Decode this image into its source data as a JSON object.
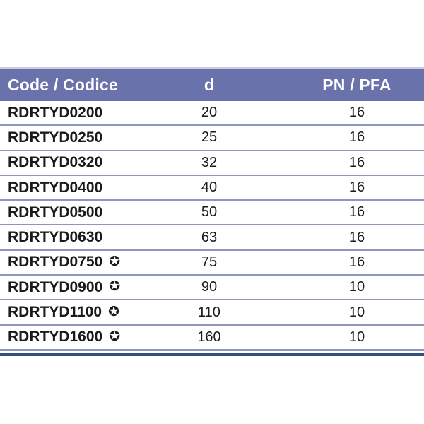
{
  "page": {
    "background": "#ffffff"
  },
  "colors": {
    "header_bg": "#6a72ab",
    "header_text": "#ffffff",
    "header_top_border": "#c9cde4",
    "row_text": "#1a1a1a",
    "separator": "#8f95bb",
    "bottom_rule": "#33517f"
  },
  "icons": {
    "certified_star": "✪"
  },
  "table": {
    "columns": [
      {
        "id": "code",
        "label": "Code / Codice"
      },
      {
        "id": "d",
        "label": "d"
      },
      {
        "id": "pn",
        "label": "PN / PFA"
      }
    ],
    "rows": [
      {
        "code": "RDRTYD0200",
        "star": false,
        "d": "20",
        "pn": "16"
      },
      {
        "code": "RDRTYD0250",
        "star": false,
        "d": "25",
        "pn": "16"
      },
      {
        "code": "RDRTYD0320",
        "star": false,
        "d": "32",
        "pn": "16"
      },
      {
        "code": "RDRTYD0400",
        "star": false,
        "d": "40",
        "pn": "16"
      },
      {
        "code": "RDRTYD0500",
        "star": false,
        "d": "50",
        "pn": "16"
      },
      {
        "code": "RDRTYD0630",
        "star": false,
        "d": "63",
        "pn": "16"
      },
      {
        "code": "RDRTYD0750",
        "star": true,
        "d": "75",
        "pn": "16"
      },
      {
        "code": "RDRTYD0900",
        "star": true,
        "d": "90",
        "pn": "10"
      },
      {
        "code": "RDRTYD1100",
        "star": true,
        "d": "110",
        "pn": "10"
      },
      {
        "code": "RDRTYD1600",
        "star": true,
        "d": "160",
        "pn": "10"
      }
    ]
  }
}
